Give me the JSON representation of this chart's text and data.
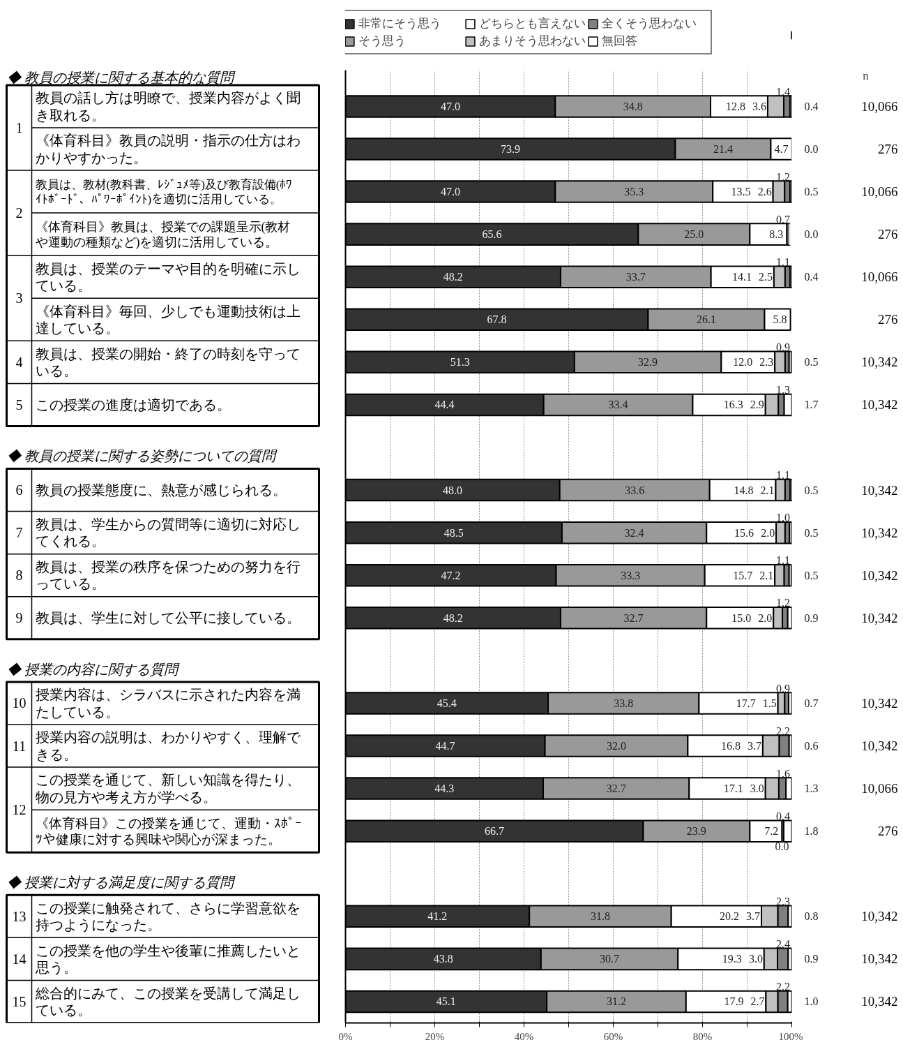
{
  "chart_data": {
    "type": "bar",
    "orientation": "horizontal",
    "stacked": true,
    "categories": [
      "教員の話し方は明瞭で、授業内容がよく聞き取れる。",
      "《体育科目》教員の説明・指示の仕方はわかりやすかった。",
      "教員は、教材(教科書、ﾚｼﾞｭﾒ等)及び教育設備(ﾎﾜｲﾄﾎﾞｰﾄﾞ、ﾊﾟﾜｰﾎﾟｲﾝﾄ)を適切に活用している。",
      "《体育科目》教員は、授業での課題呈示(教材や運動の種類など)を適切に活用している。",
      "教員は、授業のテーマや目的を明確に示している。",
      "《体育科目》毎回、少しでも運動技術は上達している。",
      "教員は、授業の開始・終了の時刻を守っている。",
      "この授業の進度は適切である。",
      null,
      "教員の授業態度に、熱意が感じられる。",
      "教員は、学生からの質問等に適切に対応してくれる。",
      "教員は、授業の秩序を保つための努力を行っている。",
      "教員は、学生に対して公平に接している。",
      null,
      "授業内容は、シラバスに示された内容を満たしている。",
      "授業内容の説明は、わかりやすく、理解できる。",
      "この授業を通じて、新しい知識を得たり、物の見方や考え方が学べる。",
      "《体育科目》この授業を通じて、運動・ｽﾎﾟｰﾂや健康に対する興味や関心が深まった。",
      null,
      "この授業に触発されて、さらに学習意欲を持つようになった。",
      "この授業を他の学生や後輩に推薦したいと思う。",
      "総合的にみて、この授業を受講して満足している。"
    ],
    "series": [
      {
        "name": "非常にそう思う",
        "color": "#333333",
        "values": [
          47.0,
          73.9,
          47.0,
          65.6,
          48.2,
          67.8,
          51.3,
          44.4,
          null,
          48.0,
          48.5,
          47.2,
          48.2,
          null,
          45.4,
          44.7,
          44.3,
          66.7,
          null,
          41.2,
          43.8,
          45.1
        ],
        "value_labels": [
          "47.0",
          "73.9",
          "47.0",
          "65.6",
          "48.2",
          "67.8",
          "51.3",
          "44.4",
          null,
          "48.0",
          "48.5",
          "47.2",
          "48.2",
          null,
          "45.4",
          "44.7",
          "44.3",
          "66.7",
          null,
          "41.2",
          "43.8",
          "45.1"
        ]
      },
      {
        "name": "そう思う",
        "color": "#999999",
        "values": [
          34.8,
          21.4,
          35.3,
          25.0,
          33.7,
          26.1,
          32.9,
          33.4,
          null,
          33.6,
          32.4,
          33.3,
          32.7,
          null,
          33.8,
          32.0,
          32.7,
          23.9,
          null,
          31.8,
          30.7,
          31.2
        ],
        "value_labels": [
          "34.8",
          "21.4",
          "35.3",
          "25.0",
          "33.7",
          "26.1",
          "32.9",
          "33.4",
          null,
          "33.6",
          "32.4",
          "33.3",
          "32.7",
          null,
          "33.8",
          "32.0",
          "32.7",
          "23.9",
          null,
          "31.8",
          "30.7",
          "31.2"
        ]
      },
      {
        "name": "どちらとも言えない",
        "color": "#ffffff",
        "values": [
          12.8,
          4.7,
          13.5,
          8.3,
          14.1,
          5.8,
          12.0,
          16.3,
          null,
          14.8,
          15.6,
          15.7,
          15.0,
          null,
          17.7,
          16.8,
          17.1,
          7.2,
          null,
          20.2,
          19.3,
          17.9
        ],
        "value_labels": [
          "12.8",
          "4.7",
          "13.5",
          "8.3",
          "14.1",
          "5.8",
          "12.0",
          "16.3",
          null,
          "14.8",
          "15.6",
          "15.7",
          "15.0",
          null,
          "17.7",
          "16.8",
          "17.1",
          "7.2",
          null,
          "20.2",
          "19.3",
          "17.9"
        ]
      },
      {
        "name": "あまりそう思わない",
        "color": "#c0c0c0",
        "values": [
          3.6,
          null,
          2.6,
          null,
          2.5,
          null,
          2.3,
          2.9,
          null,
          2.1,
          2.0,
          2.1,
          2.0,
          null,
          1.5,
          3.7,
          3.0,
          0.0,
          null,
          3.7,
          3.0,
          2.7
        ],
        "value_labels": [
          "3.6",
          null,
          "2.6",
          null,
          "2.5",
          null,
          "2.3",
          "2.9",
          null,
          "2.1",
          "2.0",
          "2.1",
          "2.0",
          null,
          "1.5",
          "3.7",
          "3.0",
          "0.0",
          null,
          "3.7",
          "3.0",
          "2.7"
        ]
      },
      {
        "name": "全くそう思わない",
        "color": "#808080",
        "values": [
          1.4,
          null,
          1.2,
          0.7,
          1.1,
          null,
          0.9,
          1.3,
          null,
          1.1,
          1.0,
          1.1,
          1.2,
          null,
          0.9,
          2.2,
          1.6,
          0.4,
          null,
          2.3,
          2.4,
          2.2
        ],
        "value_labels": [
          "1.4",
          null,
          "1.2",
          "0.7",
          "1.1",
          null,
          "0.9",
          "1.3",
          null,
          "1.1",
          "1.0",
          "1.1",
          "1.2",
          null,
          "0.9",
          "2.2",
          "1.6",
          "0.4",
          null,
          "2.3",
          "2.4",
          "2.2"
        ]
      },
      {
        "name": "無回答",
        "color": "#ffffff",
        "values": [
          0.4,
          0.0,
          0.5,
          0.0,
          0.4,
          null,
          0.5,
          1.7,
          null,
          0.5,
          0.5,
          0.5,
          0.9,
          null,
          0.7,
          0.6,
          1.3,
          1.8,
          null,
          0.8,
          0.9,
          1.0
        ],
        "value_labels": [
          "0.4",
          "0.0",
          "0.5",
          "0.0",
          "0.4",
          null,
          "0.5",
          "1.7",
          null,
          "0.5",
          "0.5",
          "0.5",
          "0.9",
          null,
          "0.7",
          "0.6",
          "1.3",
          "1.8",
          null,
          "0.8",
          "0.9",
          "1.0"
        ]
      }
    ],
    "xlim": [
      0,
      100
    ],
    "xticks": [
      {
        "value": 0,
        "label": "0%"
      },
      {
        "value": 10,
        "label": null
      },
      {
        "value": 20,
        "label": "20%"
      },
      {
        "value": 30,
        "label": null
      },
      {
        "value": 40,
        "label": "40%"
      },
      {
        "value": 50,
        "label": null
      },
      {
        "value": 60,
        "label": "60%"
      },
      {
        "value": 70,
        "label": null
      },
      {
        "value": 80,
        "label": "80%"
      },
      {
        "value": 90,
        "label": null
      },
      {
        "value": 100,
        "label": "100%"
      }
    ],
    "grid": "x",
    "legend": "top",
    "annotations": [
      "n",
      "◆ 教員の授業に関する基本的な質問",
      "◆ 教員の授業に関する姿勢についての質問",
      "◆ 授業の内容に関する質問",
      "◆ 授業に対する満足度に関する質問",
      "1",
      "2",
      "3",
      "4",
      "5",
      "6",
      "7",
      "8",
      "9",
      "10",
      "11",
      "12",
      "13",
      "14",
      "15",
      "10,066",
      "276",
      "10,066",
      "276",
      "10,066",
      "276",
      "10,342",
      "10,342",
      "10,342",
      "10,342",
      "10,342",
      "10,342",
      "10,342",
      "10,342",
      "10,066",
      "276",
      "10,342",
      "10,342",
      "10,342"
    ]
  }
}
